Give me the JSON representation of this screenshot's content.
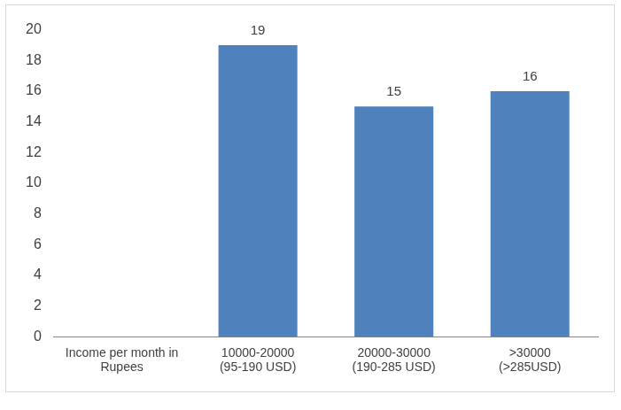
{
  "chart_data": {
    "type": "bar",
    "categories": [
      [
        "Income per month in",
        "Rupees"
      ],
      [
        "10000-20000",
        "(95-190 USD)"
      ],
      [
        "20000-30000",
        "(190-285 USD)"
      ],
      [
        ">30000",
        "(>285USD)"
      ]
    ],
    "values": [
      null,
      19,
      15,
      16
    ],
    "color": "#4f81bd",
    "ylim": [
      0,
      20
    ],
    "yticks": [
      0,
      2,
      4,
      6,
      8,
      10,
      12,
      14,
      16,
      18,
      20
    ],
    "grid": false,
    "data_labels": true
  }
}
